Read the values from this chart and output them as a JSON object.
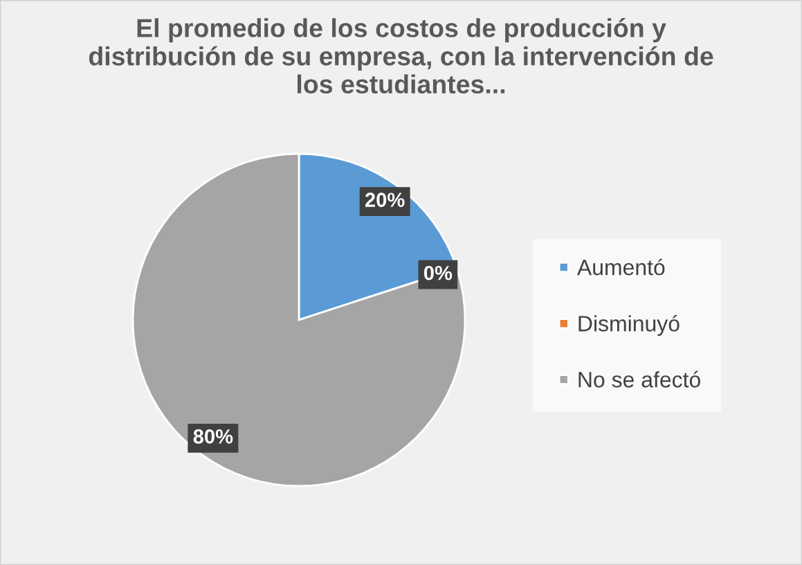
{
  "chart_data": {
    "type": "pie",
    "title": "El promedio de los costos de producción y distribución de su empresa, con la intervención de los estudiantes...",
    "categories": [
      "Aumentó",
      "Disminuyó",
      "No se afectó"
    ],
    "values": [
      20,
      0,
      80
    ],
    "colors": [
      "#5b9bd5",
      "#ed7d31",
      "#a5a5a5"
    ],
    "value_labels": [
      "20%",
      "0%",
      "80%"
    ],
    "legend": "right"
  }
}
